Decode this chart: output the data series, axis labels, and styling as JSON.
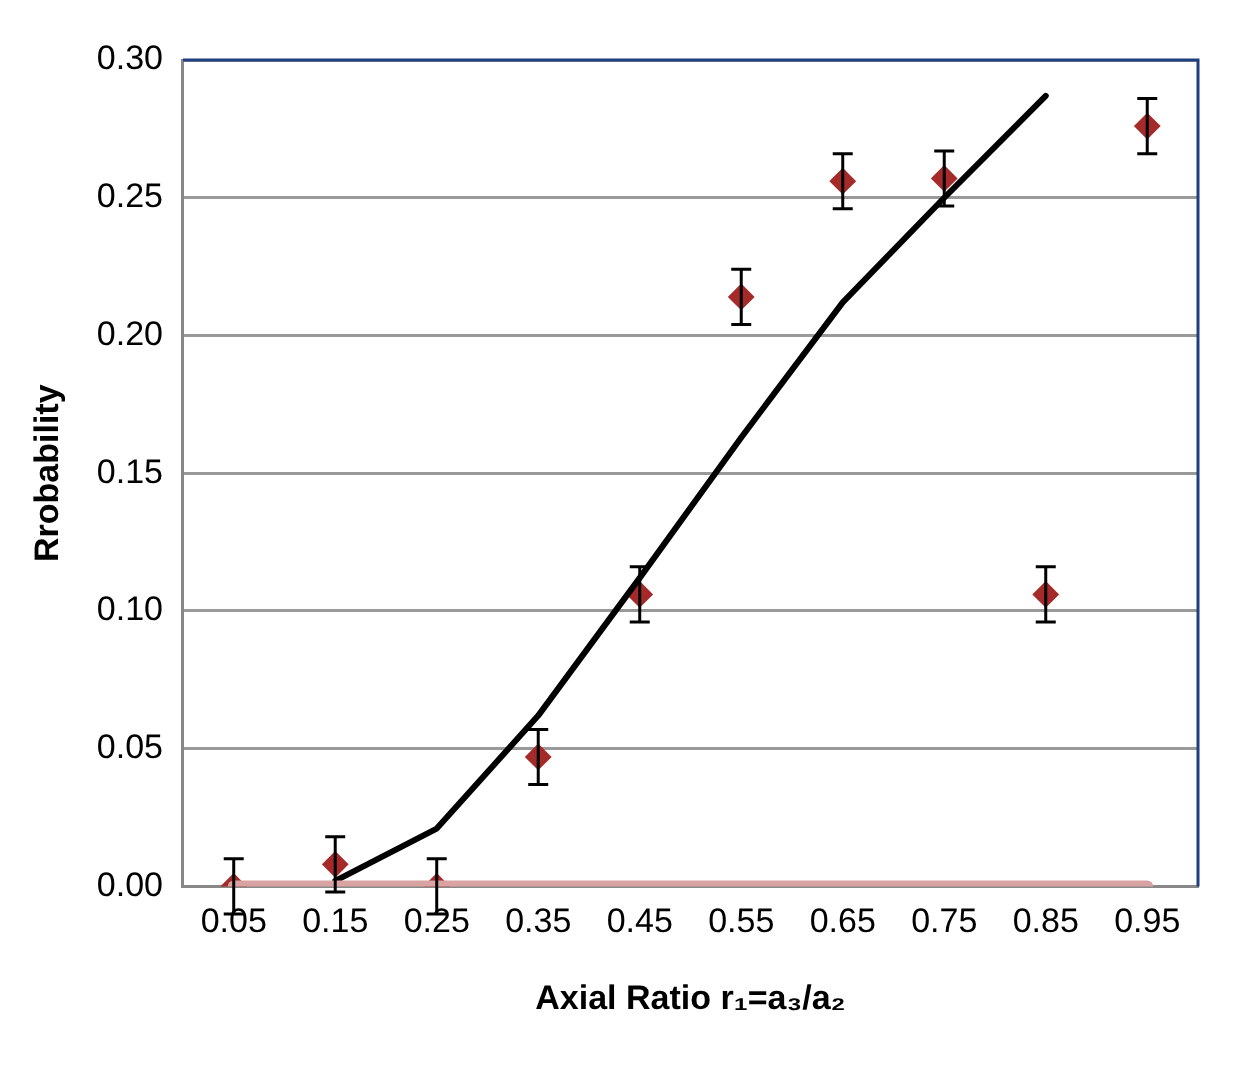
{
  "chart_data": {
    "type": "line",
    "xlabel": "Axial Ratio r₁=a₃/a₂",
    "ylabel": "Rrobability",
    "categories": [
      "0.05",
      "0.15",
      "0.25",
      "0.35",
      "0.45",
      "0.55",
      "0.65",
      "0.75",
      "0.85",
      "0.95"
    ],
    "series": [
      {
        "color": "#d9a3a3",
        "marker": "none",
        "values": [
          0,
          0,
          0,
          0,
          0,
          0,
          0,
          0,
          0,
          0
        ]
      },
      {
        "color": "#000000",
        "marker": "none",
        "values": [
          null,
          0.002,
          0.021,
          0.062,
          0.112,
          0.163,
          0.212,
          0.25,
          0.287,
          null
        ]
      },
      {
        "type": "scatter",
        "marker": "diamond",
        "color": "#a52a2a",
        "values": [
          0,
          0.008,
          0,
          0.047,
          0.106,
          0.214,
          0.256,
          0.257,
          0.106,
          0.276
        ],
        "errors": [
          0.01,
          0.01,
          0.01,
          0.01,
          0.01,
          0.01,
          0.01,
          0.01,
          0.01,
          0.01
        ]
      }
    ],
    "ylim": [
      0,
      0.3
    ],
    "yticks": [
      {
        "value": 0,
        "label": "0.00"
      },
      0.05,
      {
        "value": 0.1,
        "label": "0.10"
      },
      0.15,
      {
        "value": 0.2,
        "label": "0.20"
      },
      0.25,
      {
        "value": 0.3,
        "label": "0.30"
      }
    ],
    "grid": "y",
    "legend": false
  }
}
